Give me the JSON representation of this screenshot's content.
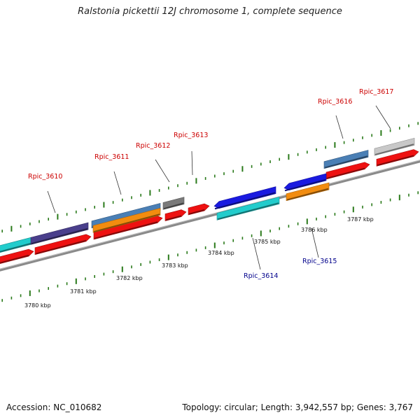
{
  "title": "Ralstonia pickettii 12J chromosome 1, complete sequence",
  "footer": {
    "accession": "Accession: NC_010682",
    "topology": "Topology: circular; Length: 3,942,557 bp; Genes: 3,767"
  },
  "scale_labels": [
    "3780 kbp",
    "3781 kbp",
    "3782 kbp",
    "3783 kbp",
    "3784 kbp",
    "3785 kbp",
    "3786 kbp",
    "3787 kbp"
  ],
  "gene_labels": {
    "forward": [
      "Rpic_3610",
      "Rpic_3611",
      "Rpic_3612",
      "Rpic_3613",
      "Rpic_3616",
      "Rpic_3617"
    ],
    "reverse": [
      "Rpic_3614",
      "Rpic_3615"
    ]
  },
  "colors": {
    "backbone": "#8a8a8a",
    "tick": "#2a7a1a",
    "forward_label": "#cc0000",
    "reverse_label": "#00008b",
    "cds_red": "#ee1111",
    "cyan": "#22cccc",
    "purple": "#4a3f8c",
    "steelblue": "#4a7fb5",
    "orange": "#f28c0f",
    "gray": "#7a7a7a",
    "lightgray": "#c8c8c8",
    "blue": "#1a1ae0"
  }
}
